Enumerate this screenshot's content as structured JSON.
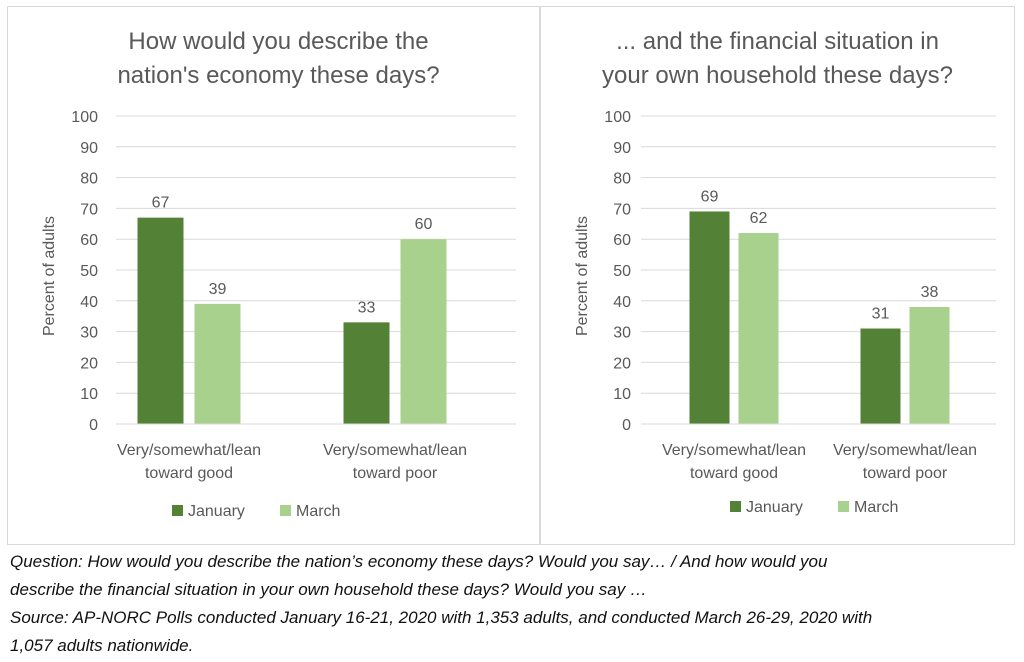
{
  "charts": [
    {
      "title_lines": [
        "How would you describe the",
        "nation's economy these days?"
      ]
    },
    {
      "title_lines": [
        "... and the financial situation in",
        "your own household these days?"
      ]
    }
  ],
  "chart_data": [
    {
      "type": "bar",
      "title": "How would you describe the nation's economy these days?",
      "categories": [
        [
          "Very/somewhat/lean",
          "toward good"
        ],
        [
          "Very/somewhat/lean",
          "toward poor"
        ]
      ],
      "series": [
        {
          "name": "January",
          "values": [
            67,
            33
          ],
          "color": "#538135"
        },
        {
          "name": "March",
          "values": [
            39,
            60
          ],
          "color": "#a9d18e"
        }
      ],
      "ylabel": "Percent of adults",
      "ylim": [
        0,
        100
      ],
      "yticks": [
        0,
        10,
        20,
        30,
        40,
        50,
        60,
        70,
        80,
        90,
        100
      ],
      "grid": true,
      "legend": "bottom"
    },
    {
      "type": "bar",
      "title": "... and the financial situation in your own household these days?",
      "categories": [
        [
          "Very/somewhat/lean",
          "toward good"
        ],
        [
          "Very/somewhat/lean",
          "toward poor"
        ]
      ],
      "series": [
        {
          "name": "January",
          "values": [
            69,
            31
          ],
          "color": "#538135"
        },
        {
          "name": "March",
          "values": [
            62,
            38
          ],
          "color": "#a9d18e"
        }
      ],
      "ylabel": "Percent of adults",
      "ylim": [
        0,
        100
      ],
      "yticks": [
        0,
        10,
        20,
        30,
        40,
        50,
        60,
        70,
        80,
        90,
        100
      ],
      "grid": true,
      "legend": "bottom"
    }
  ],
  "footnote": {
    "question_lines": [
      "Question: How would you describe the nation’s economy these days? Would you say… / And how would you",
      "describe the financial situation in your own household these days? Would you say …"
    ],
    "source_lines": [
      "Source: AP-NORC Polls conducted January 16-21, 2020 with 1,353 adults, and conducted March 26-29, 2020 with",
      "1,057 adults nationwide."
    ]
  }
}
